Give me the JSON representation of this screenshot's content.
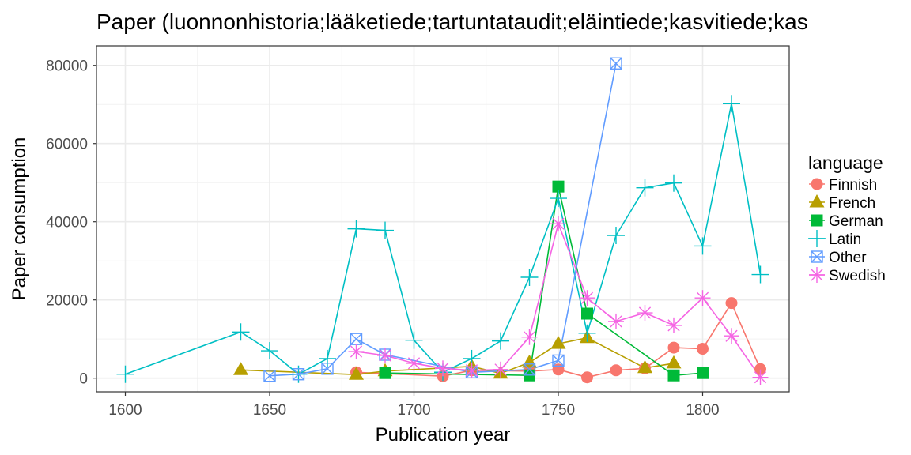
{
  "chart_data": {
    "type": "line",
    "title": "Paper (luonnonhistoria;lääketiede;tartuntataudit;eläintiede;kasvitiede;kas",
    "xlabel": "Publication year",
    "ylabel": "Paper consumption",
    "xlim": [
      1590,
      1830
    ],
    "ylim": [
      -3500,
      85000
    ],
    "xticks": [
      1600,
      1650,
      1700,
      1750,
      1800
    ],
    "yticks": [
      0,
      20000,
      40000,
      60000,
      80000
    ],
    "grid": true,
    "legend_position": "right",
    "legend_title": "language",
    "series": [
      {
        "name": "Finnish",
        "color": "#F8766D",
        "marker": "circle",
        "x": [
          1680,
          1710,
          1720,
          1740,
          1750,
          1760,
          1770,
          1780,
          1790,
          1800,
          1810,
          1820
        ],
        "y": [
          1500,
          500,
          2000,
          1800,
          2200,
          200,
          2000,
          2500,
          7800,
          7500,
          19200,
          2300
        ]
      },
      {
        "name": "French",
        "color": "#B79F00",
        "marker": "triangle",
        "x": [
          1640,
          1680,
          1690,
          1720,
          1730,
          1740,
          1750,
          1760,
          1780,
          1790
        ],
        "y": [
          2100,
          900,
          1800,
          3000,
          1200,
          4000,
          8800,
          10300,
          2600,
          3800
        ]
      },
      {
        "name": "German",
        "color": "#00BA38",
        "marker": "square",
        "x": [
          1690,
          1740,
          1750,
          1760,
          1790,
          1800
        ],
        "y": [
          1300,
          700,
          49000,
          16500,
          700,
          1300
        ]
      },
      {
        "name": "Latin",
        "color": "#00BFC4",
        "marker": "plus",
        "x": [
          1600,
          1640,
          1650,
          1660,
          1670,
          1680,
          1690,
          1700,
          1710,
          1720,
          1730,
          1740,
          1750,
          1760,
          1770,
          1780,
          1790,
          1800,
          1810,
          1820
        ],
        "y": [
          1000,
          11800,
          7000,
          1000,
          5000,
          38200,
          37800,
          9700,
          1500,
          5000,
          9500,
          25800,
          46000,
          11500,
          36500,
          48700,
          49900,
          33800,
          70200,
          26500
        ]
      },
      {
        "name": "Other",
        "color": "#619CFF",
        "marker": "square-cross",
        "x": [
          1650,
          1660,
          1670,
          1680,
          1690,
          1720,
          1740,
          1750,
          1770
        ],
        "y": [
          600,
          1000,
          2400,
          10000,
          6000,
          1500,
          2200,
          4500,
          80500
        ]
      },
      {
        "name": "Swedish",
        "color": "#F564E3",
        "marker": "asterisk",
        "x": [
          1680,
          1690,
          1700,
          1710,
          1720,
          1730,
          1740,
          1750,
          1760,
          1770,
          1780,
          1790,
          1800,
          1810,
          1820
        ],
        "y": [
          6800,
          5800,
          3800,
          2500,
          2000,
          2200,
          10500,
          39500,
          20500,
          14500,
          16700,
          13500,
          20500,
          10800,
          200
        ]
      }
    ]
  }
}
